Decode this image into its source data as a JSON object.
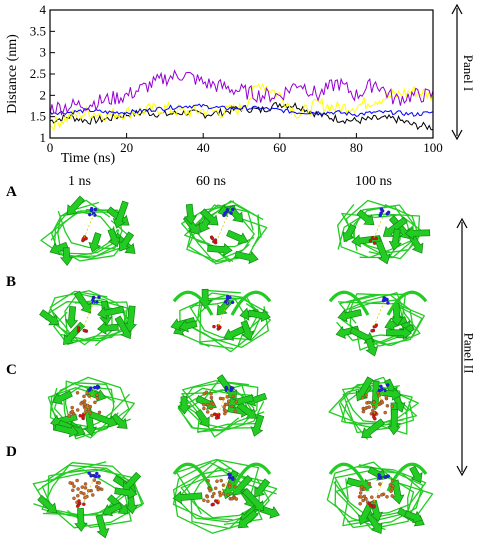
{
  "panel_one": {
    "label": "Panel I",
    "chart_data": {
      "type": "line",
      "xlabel": "Time (ns)",
      "ylabel": "Distance (nm)",
      "xlim": [
        0,
        100
      ],
      "ylim": [
        1,
        4
      ],
      "xticks": [
        0,
        20,
        40,
        60,
        80,
        100
      ],
      "yticks": [
        1,
        1.5,
        2,
        2.5,
        3,
        3.5,
        4
      ],
      "xtick_labels": [
        "0",
        "20",
        "40",
        "60",
        "80",
        "100"
      ],
      "ytick_labels": [
        "1",
        "1.5",
        "2",
        "2.5",
        "3",
        "3.5",
        "4"
      ],
      "grid": false,
      "series": [
        {
          "color": "#000000",
          "x": [
            0,
            5,
            10,
            15,
            20,
            25,
            30,
            35,
            40,
            45,
            50,
            55,
            60,
            65,
            70,
            75,
            80,
            85,
            90,
            95,
            100
          ],
          "y": [
            1.4,
            1.5,
            1.4,
            1.45,
            1.55,
            1.6,
            1.55,
            1.6,
            1.55,
            1.6,
            1.7,
            1.65,
            1.8,
            1.75,
            1.55,
            1.45,
            1.4,
            1.45,
            1.45,
            1.3,
            1.25
          ]
        },
        {
          "color": "#ffff00",
          "x": [
            0,
            5,
            10,
            15,
            20,
            25,
            30,
            35,
            40,
            45,
            50,
            55,
            60,
            65,
            70,
            75,
            80,
            85,
            90,
            95,
            100
          ],
          "y": [
            1.3,
            1.5,
            1.6,
            1.55,
            1.6,
            1.65,
            1.7,
            1.6,
            1.65,
            1.6,
            1.7,
            2.3,
            2.0,
            1.55,
            1.8,
            1.7,
            1.75,
            1.9,
            2.0,
            2.1,
            2.0
          ]
        },
        {
          "color": "#0000ff",
          "x": [
            0,
            5,
            10,
            15,
            20,
            25,
            30,
            35,
            40,
            45,
            50,
            55,
            60,
            65,
            70,
            75,
            80,
            85,
            90,
            95,
            100
          ],
          "y": [
            1.6,
            1.6,
            1.65,
            1.6,
            1.6,
            1.65,
            1.7,
            1.75,
            1.75,
            1.7,
            1.7,
            1.7,
            1.65,
            1.6,
            1.6,
            1.6,
            1.55,
            1.6,
            1.6,
            1.55,
            1.6
          ]
        },
        {
          "color": "#9400d3",
          "x": [
            0,
            5,
            10,
            15,
            20,
            25,
            30,
            35,
            40,
            45,
            50,
            55,
            60,
            65,
            70,
            75,
            80,
            85,
            90,
            95,
            100
          ],
          "y": [
            1.7,
            1.75,
            1.8,
            1.9,
            2.0,
            2.2,
            2.4,
            2.5,
            2.3,
            2.2,
            2.1,
            2.0,
            2.0,
            2.3,
            2.0,
            2.3,
            2.0,
            2.3,
            1.9,
            2.0,
            2.0
          ]
        }
      ]
    }
  },
  "panel_two": {
    "label": "Panel II",
    "columns": [
      "1 ns",
      "60 ns",
      "100 ns"
    ],
    "rows": [
      {
        "letter": "A",
        "ligand": false
      },
      {
        "letter": "B",
        "ligand": false
      },
      {
        "letter": "C",
        "ligand": true
      },
      {
        "letter": "D",
        "ligand": true
      }
    ],
    "colors": {
      "ribbon": "#22cc22",
      "ribbon_dark": "#118811",
      "blue": "#1a1aff",
      "red": "#e01010",
      "ligand": "#d2691e"
    }
  }
}
